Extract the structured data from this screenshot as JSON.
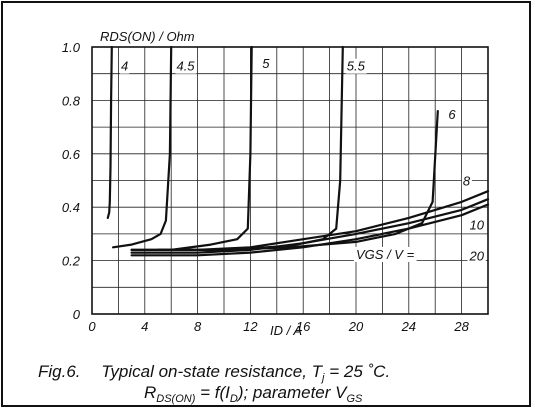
{
  "chart_data": {
    "type": "line",
    "ylabel": "RDS(ON) / Ohm",
    "xlabel": "ID / A",
    "xlim": [
      0,
      30
    ],
    "ylim": [
      0,
      1.0
    ],
    "x_ticks": [
      0,
      4,
      8,
      12,
      16,
      20,
      24,
      28
    ],
    "x_tick_labels": [
      "0",
      "4",
      "8",
      "12",
      "16",
      "20",
      "24",
      "28"
    ],
    "y_ticks": [
      0,
      0.2,
      0.4,
      0.6,
      0.8,
      1.0
    ],
    "y_tick_labels": [
      "0",
      "0.2",
      "0.4",
      "0.6",
      "0.8",
      "1.0"
    ],
    "x_grid_step": 2,
    "y_grid_step": 0.1,
    "grid": true,
    "legend_title": "VGS / V =",
    "series": [
      {
        "name": "4",
        "x": [
          1.2,
          1.3,
          1.35,
          1.4,
          1.45,
          1.5
        ],
        "y": [
          0.36,
          0.38,
          0.42,
          0.55,
          0.8,
          1.0
        ]
      },
      {
        "name": "4.5",
        "x": [
          1.6,
          3.0,
          4.5,
          5.2,
          5.6,
          5.9,
          6.0
        ],
        "y": [
          0.25,
          0.26,
          0.28,
          0.3,
          0.35,
          0.6,
          1.0
        ]
      },
      {
        "name": "5",
        "x": [
          3.0,
          6.0,
          9.0,
          11.0,
          11.8,
          12.0,
          12.1
        ],
        "y": [
          0.24,
          0.24,
          0.26,
          0.28,
          0.32,
          0.6,
          1.0
        ]
      },
      {
        "name": "5.5",
        "x": [
          5.0,
          10.0,
          15.0,
          17.5,
          18.5,
          18.8,
          19.0
        ],
        "y": [
          0.24,
          0.24,
          0.255,
          0.28,
          0.32,
          0.5,
          1.0
        ]
      },
      {
        "name": "6",
        "x": [
          5.0,
          10.0,
          15.0,
          20.0,
          23.0,
          25.0,
          25.8,
          26.2
        ],
        "y": [
          0.24,
          0.24,
          0.25,
          0.27,
          0.3,
          0.34,
          0.42,
          0.76
        ]
      },
      {
        "name": "8",
        "x": [
          3.0,
          8.0,
          12.0,
          16.0,
          20.0,
          24.0,
          28.0,
          30.0
        ],
        "y": [
          0.24,
          0.24,
          0.25,
          0.28,
          0.31,
          0.36,
          0.42,
          0.46
        ]
      },
      {
        "name": "10",
        "x": [
          3.0,
          8.0,
          12.0,
          16.0,
          20.0,
          24.0,
          28.0,
          30.0
        ],
        "y": [
          0.23,
          0.23,
          0.24,
          0.265,
          0.3,
          0.34,
          0.39,
          0.43
        ]
      },
      {
        "name": "20",
        "x": [
          3.0,
          8.0,
          12.0,
          16.0,
          20.0,
          24.0,
          28.0,
          30.0
        ],
        "y": [
          0.22,
          0.22,
          0.23,
          0.25,
          0.28,
          0.32,
          0.37,
          0.41
        ]
      }
    ],
    "curve_labels": [
      {
        "text": "4",
        "x": 2.2,
        "y": 0.93
      },
      {
        "text": "4.5",
        "x": 6.4,
        "y": 0.93
      },
      {
        "text": "5",
        "x": 12.9,
        "y": 0.94
      },
      {
        "text": "5.5",
        "x": 19.3,
        "y": 0.93
      },
      {
        "text": "6",
        "x": 27.0,
        "y": 0.75
      },
      {
        "text": "8",
        "x": 28.1,
        "y": 0.5
      },
      {
        "text": "10",
        "x": 28.6,
        "y": 0.335
      },
      {
        "text": "20",
        "x": 28.6,
        "y": 0.22
      }
    ],
    "legend_pos": {
      "x": 20.0,
      "y": 0.225
    }
  },
  "caption": {
    "fig": "Fig.6.",
    "line1": "Typical on-state resistance, T",
    "line1_sub": "j",
    "line1_end": " = 25 ˚C.",
    "r": "R",
    "r_sub": "DS(ON)",
    "mid": " = f(I",
    "d_sub": "D",
    "param": "); parameter V",
    "gs_sub": "GS"
  }
}
